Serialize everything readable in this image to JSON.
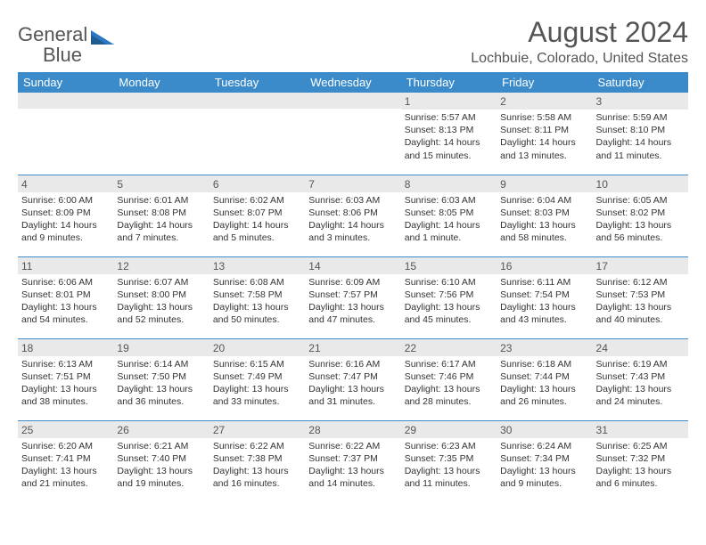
{
  "logo": {
    "text1": "General",
    "text2": "Blue"
  },
  "title": "August 2024",
  "location": "Lochbuie, Colorado, United States",
  "colors": {
    "header_bg": "#3b8bca",
    "header_text": "#ffffff",
    "daynum_bg": "#e9e9e9",
    "border": "#3b8bca",
    "text": "#333333",
    "muted": "#555555"
  },
  "headers": [
    "Sunday",
    "Monday",
    "Tuesday",
    "Wednesday",
    "Thursday",
    "Friday",
    "Saturday"
  ],
  "weeks": [
    [
      {
        "n": "",
        "sr": "",
        "ss": "",
        "dl": ""
      },
      {
        "n": "",
        "sr": "",
        "ss": "",
        "dl": ""
      },
      {
        "n": "",
        "sr": "",
        "ss": "",
        "dl": ""
      },
      {
        "n": "",
        "sr": "",
        "ss": "",
        "dl": ""
      },
      {
        "n": "1",
        "sr": "Sunrise: 5:57 AM",
        "ss": "Sunset: 8:13 PM",
        "dl": "Daylight: 14 hours and 15 minutes."
      },
      {
        "n": "2",
        "sr": "Sunrise: 5:58 AM",
        "ss": "Sunset: 8:11 PM",
        "dl": "Daylight: 14 hours and 13 minutes."
      },
      {
        "n": "3",
        "sr": "Sunrise: 5:59 AM",
        "ss": "Sunset: 8:10 PM",
        "dl": "Daylight: 14 hours and 11 minutes."
      }
    ],
    [
      {
        "n": "4",
        "sr": "Sunrise: 6:00 AM",
        "ss": "Sunset: 8:09 PM",
        "dl": "Daylight: 14 hours and 9 minutes."
      },
      {
        "n": "5",
        "sr": "Sunrise: 6:01 AM",
        "ss": "Sunset: 8:08 PM",
        "dl": "Daylight: 14 hours and 7 minutes."
      },
      {
        "n": "6",
        "sr": "Sunrise: 6:02 AM",
        "ss": "Sunset: 8:07 PM",
        "dl": "Daylight: 14 hours and 5 minutes."
      },
      {
        "n": "7",
        "sr": "Sunrise: 6:03 AM",
        "ss": "Sunset: 8:06 PM",
        "dl": "Daylight: 14 hours and 3 minutes."
      },
      {
        "n": "8",
        "sr": "Sunrise: 6:03 AM",
        "ss": "Sunset: 8:05 PM",
        "dl": "Daylight: 14 hours and 1 minute."
      },
      {
        "n": "9",
        "sr": "Sunrise: 6:04 AM",
        "ss": "Sunset: 8:03 PM",
        "dl": "Daylight: 13 hours and 58 minutes."
      },
      {
        "n": "10",
        "sr": "Sunrise: 6:05 AM",
        "ss": "Sunset: 8:02 PM",
        "dl": "Daylight: 13 hours and 56 minutes."
      }
    ],
    [
      {
        "n": "11",
        "sr": "Sunrise: 6:06 AM",
        "ss": "Sunset: 8:01 PM",
        "dl": "Daylight: 13 hours and 54 minutes."
      },
      {
        "n": "12",
        "sr": "Sunrise: 6:07 AM",
        "ss": "Sunset: 8:00 PM",
        "dl": "Daylight: 13 hours and 52 minutes."
      },
      {
        "n": "13",
        "sr": "Sunrise: 6:08 AM",
        "ss": "Sunset: 7:58 PM",
        "dl": "Daylight: 13 hours and 50 minutes."
      },
      {
        "n": "14",
        "sr": "Sunrise: 6:09 AM",
        "ss": "Sunset: 7:57 PM",
        "dl": "Daylight: 13 hours and 47 minutes."
      },
      {
        "n": "15",
        "sr": "Sunrise: 6:10 AM",
        "ss": "Sunset: 7:56 PM",
        "dl": "Daylight: 13 hours and 45 minutes."
      },
      {
        "n": "16",
        "sr": "Sunrise: 6:11 AM",
        "ss": "Sunset: 7:54 PM",
        "dl": "Daylight: 13 hours and 43 minutes."
      },
      {
        "n": "17",
        "sr": "Sunrise: 6:12 AM",
        "ss": "Sunset: 7:53 PM",
        "dl": "Daylight: 13 hours and 40 minutes."
      }
    ],
    [
      {
        "n": "18",
        "sr": "Sunrise: 6:13 AM",
        "ss": "Sunset: 7:51 PM",
        "dl": "Daylight: 13 hours and 38 minutes."
      },
      {
        "n": "19",
        "sr": "Sunrise: 6:14 AM",
        "ss": "Sunset: 7:50 PM",
        "dl": "Daylight: 13 hours and 36 minutes."
      },
      {
        "n": "20",
        "sr": "Sunrise: 6:15 AM",
        "ss": "Sunset: 7:49 PM",
        "dl": "Daylight: 13 hours and 33 minutes."
      },
      {
        "n": "21",
        "sr": "Sunrise: 6:16 AM",
        "ss": "Sunset: 7:47 PM",
        "dl": "Daylight: 13 hours and 31 minutes."
      },
      {
        "n": "22",
        "sr": "Sunrise: 6:17 AM",
        "ss": "Sunset: 7:46 PM",
        "dl": "Daylight: 13 hours and 28 minutes."
      },
      {
        "n": "23",
        "sr": "Sunrise: 6:18 AM",
        "ss": "Sunset: 7:44 PM",
        "dl": "Daylight: 13 hours and 26 minutes."
      },
      {
        "n": "24",
        "sr": "Sunrise: 6:19 AM",
        "ss": "Sunset: 7:43 PM",
        "dl": "Daylight: 13 hours and 24 minutes."
      }
    ],
    [
      {
        "n": "25",
        "sr": "Sunrise: 6:20 AM",
        "ss": "Sunset: 7:41 PM",
        "dl": "Daylight: 13 hours and 21 minutes."
      },
      {
        "n": "26",
        "sr": "Sunrise: 6:21 AM",
        "ss": "Sunset: 7:40 PM",
        "dl": "Daylight: 13 hours and 19 minutes."
      },
      {
        "n": "27",
        "sr": "Sunrise: 6:22 AM",
        "ss": "Sunset: 7:38 PM",
        "dl": "Daylight: 13 hours and 16 minutes."
      },
      {
        "n": "28",
        "sr": "Sunrise: 6:22 AM",
        "ss": "Sunset: 7:37 PM",
        "dl": "Daylight: 13 hours and 14 minutes."
      },
      {
        "n": "29",
        "sr": "Sunrise: 6:23 AM",
        "ss": "Sunset: 7:35 PM",
        "dl": "Daylight: 13 hours and 11 minutes."
      },
      {
        "n": "30",
        "sr": "Sunrise: 6:24 AM",
        "ss": "Sunset: 7:34 PM",
        "dl": "Daylight: 13 hours and 9 minutes."
      },
      {
        "n": "31",
        "sr": "Sunrise: 6:25 AM",
        "ss": "Sunset: 7:32 PM",
        "dl": "Daylight: 13 hours and 6 minutes."
      }
    ]
  ]
}
